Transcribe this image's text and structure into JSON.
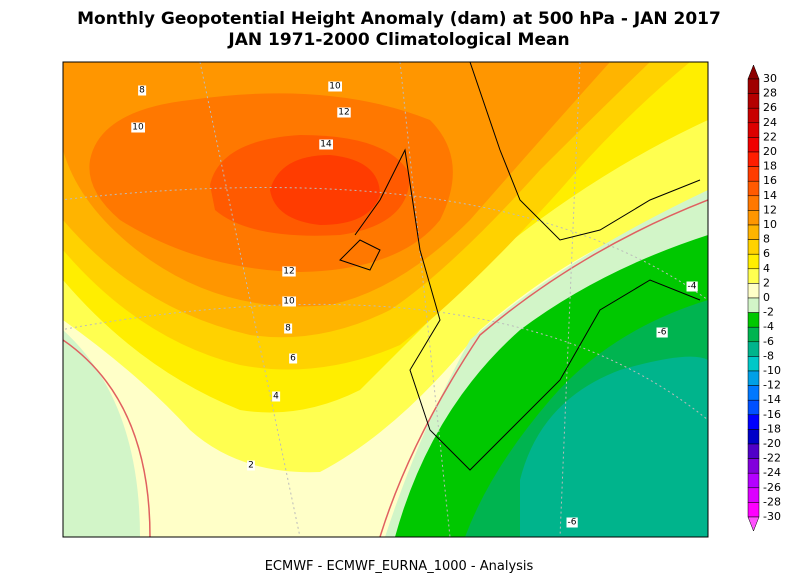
{
  "title": "Monthly Geopotential Height Anomaly (dam) at 500 hPa - JAN 2017",
  "subtitle": "JAN 1971-2000 Climatological Mean",
  "footer": "ECMWF - ECMWF_EURNA_1000 - Analysis",
  "contour_labels": [
    "8",
    "10",
    "10",
    "12",
    "14",
    "12",
    "10",
    "8",
    "6",
    "4",
    "2",
    "-4",
    "-6",
    "-6"
  ],
  "colorbar": {
    "labels": [
      "30",
      "28",
      "26",
      "24",
      "22",
      "20",
      "18",
      "16",
      "14",
      "12",
      "10",
      "8",
      "6",
      "4",
      "2",
      "0",
      "-2",
      "-4",
      "-6",
      "-8",
      "-10",
      "-12",
      "-14",
      "-16",
      "-18",
      "-20",
      "-22",
      "-24",
      "-26",
      "-28",
      "-30"
    ],
    "colors": [
      "#8c0000",
      "#a00000",
      "#b40000",
      "#c80000",
      "#dc0000",
      "#f00000",
      "#ff1e00",
      "#ff3c00",
      "#ff5a00",
      "#ff7800",
      "#ff9600",
      "#ffb400",
      "#ffd200",
      "#ffee00",
      "#ffff50",
      "#ffffc8",
      "#d2f5c8",
      "#00c800",
      "#00b450",
      "#00b48c",
      "#00c8c8",
      "#00a0e6",
      "#0078ff",
      "#0050ff",
      "#0000ff",
      "#0000c8",
      "#5000c8",
      "#8200dc",
      "#b400ff",
      "#dc00ff",
      "#ff00ff",
      "#ff50ff"
    ]
  }
}
